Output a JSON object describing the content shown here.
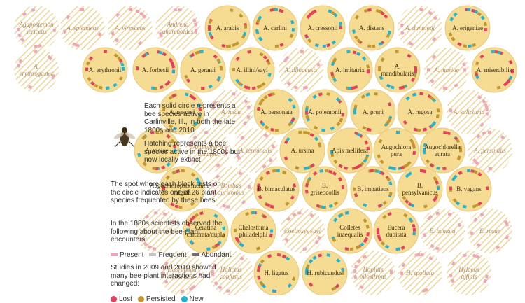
{
  "colors": {
    "fill": "#f6dc93",
    "ring": "#e9c97a",
    "hatch": "#efd59a",
    "lost": "#e63e5c",
    "persisted": "#c1962e",
    "new": "#1fb3d6",
    "present": "#f1a6b5",
    "frequent": "#c9c4c0",
    "abundant": "#6e6e6e"
  },
  "bees": [
    {
      "name": "Agapostemon sericeus",
      "extinct": true
    },
    {
      "name": "A. splendens",
      "extinct": true
    },
    {
      "name": "A. virescens",
      "extinct": true
    },
    {
      "name": "Andrena andrenoides",
      "extinct": true
    },
    {
      "name": "A. arabis",
      "extinct": false
    },
    {
      "name": "A. carlini",
      "extinct": false
    },
    {
      "name": "A. cressonii",
      "extinct": false
    },
    {
      "name": "A. distans",
      "extinct": false
    },
    {
      "name": "A. dunningi",
      "extinct": true
    },
    {
      "name": "A. erigeniae",
      "extinct": false
    },
    {
      "name": "A. erythrogaster",
      "extinct": true
    },
    {
      "name": "A. erythronii",
      "extinct": false
    },
    {
      "name": "A. forbesii",
      "extinct": false
    },
    {
      "name": "A. geranii",
      "extinct": false
    },
    {
      "name": "A. illini/sayi",
      "extinct": false
    },
    {
      "name": "A. illinoensis",
      "extinct": true
    },
    {
      "name": "A. imitatrix",
      "extinct": false
    },
    {
      "name": "A. mandibularis",
      "extinct": false
    },
    {
      "name": "A. mariae",
      "extinct": true
    },
    {
      "name": "A. miserabilis",
      "extinct": false
    },
    {
      "name": "A. nasonii",
      "extinct": false
    },
    {
      "name": "A. nuda",
      "extinct": true
    },
    {
      "name": "A. personata",
      "extinct": false
    },
    {
      "name": "A. polemonii",
      "extinct": false
    },
    {
      "name": "A. pruni",
      "extinct": false
    },
    {
      "name": "A. rugosa",
      "extinct": false
    },
    {
      "name": "A. salictaria",
      "extinct": true
    },
    {
      "name": "A. violae",
      "extinct": false
    },
    {
      "name": "Anthophora abrupta",
      "extinct": true
    },
    {
      "name": "A. terminalis",
      "extinct": true
    },
    {
      "name": "A. ursina",
      "extinct": false
    },
    {
      "name": "Apis mellifera",
      "extinct": false
    },
    {
      "name": "Augochlora pura",
      "extinct": false
    },
    {
      "name": "Augochlorella aurata",
      "extinct": false
    },
    {
      "name": "A. persimilis",
      "extinct": true
    },
    {
      "name": "Augochloropsis metallica fulgida",
      "extinct": false
    },
    {
      "name": "Bombus auricomus",
      "extinct": true
    },
    {
      "name": "B. bimaculatus",
      "extinct": false
    },
    {
      "name": "B. griseocollis",
      "extinct": false
    },
    {
      "name": "B. impatiens",
      "extinct": false
    },
    {
      "name": "B. pensylvanicus",
      "extinct": false
    },
    {
      "name": "B. vagans",
      "extinct": false
    },
    {
      "name": "B. variabilis",
      "extinct": true
    },
    {
      "name": "Ceratina calcarata/dupla",
      "extinct": false
    },
    {
      "name": "Chelostoma philadelphi",
      "extinct": false
    },
    {
      "name": "Coelioxys sayi",
      "extinct": true
    },
    {
      "name": "Colletes inaequalis",
      "extinct": false
    },
    {
      "name": "Eucera dubitata",
      "extinct": false
    },
    {
      "name": "E. hamata",
      "extinct": true
    },
    {
      "name": "E. rosae",
      "extinct": true
    },
    {
      "name": "Habropoda laboriosa",
      "extinct": true
    },
    {
      "name": "Halictus confusus",
      "extinct": true
    },
    {
      "name": "H. ligatus",
      "extinct": false
    },
    {
      "name": "H. rubicundus",
      "extinct": false
    },
    {
      "name": "Hoplitis pilosifrons",
      "extinct": true
    },
    {
      "name": "H. spoliata",
      "extinct": true
    },
    {
      "name": "Hylaeus affinis",
      "extinct": true
    }
  ],
  "legend": {
    "solid": "Each solid circle represents a bee species active in Carlinville, Ill., in both the late 1800s and 2010",
    "hatch": "Hatching represents a bee species active in the 1800s but now locally extinct",
    "spot": "The spot where each block rests on the circle indicates one of 26 plant species frequented by these bees",
    "observed": "In the 1880s scientists observed the following about the bee-plant encounters:",
    "present": "Present",
    "frequent": "Frequent",
    "abundant": "Abundant",
    "studies": "Studies in 2009 and 2010 showed many bee-plant interactions had changed:",
    "lost": "Lost",
    "persisted": "Persisted",
    "new": "New"
  }
}
